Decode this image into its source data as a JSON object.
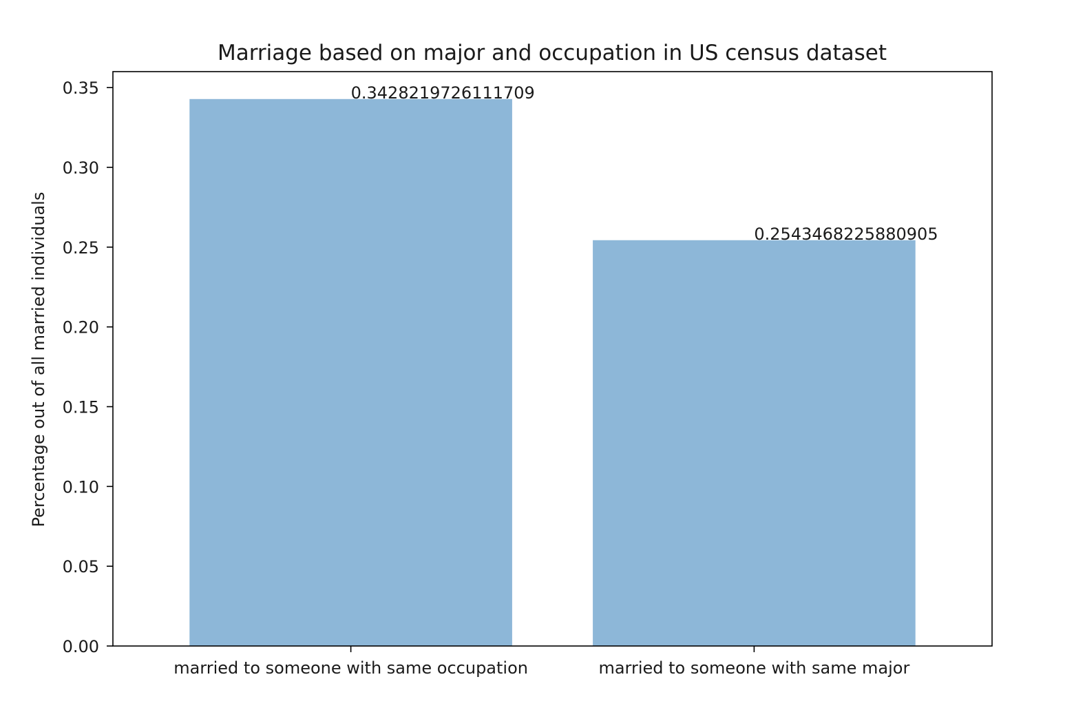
{
  "chart_data": {
    "type": "bar",
    "title": "Marriage based on major and occupation in US census dataset",
    "xlabel": "",
    "ylabel": "Percentage out of all married individuals",
    "categories": [
      "married to someone with same occupation",
      "married to someone with same major"
    ],
    "values": [
      0.3428219726111709,
      0.2543468225880905
    ],
    "data_labels": [
      "0.3428219726111709",
      "0.2543468225880905"
    ],
    "ylim": [
      0,
      0.36
    ],
    "yticks": [
      0.0,
      0.05,
      0.1,
      0.15,
      0.2,
      0.25,
      0.3,
      0.35
    ],
    "ytick_labels": [
      "0.00",
      "0.05",
      "0.10",
      "0.15",
      "0.20",
      "0.25",
      "0.30",
      "0.35"
    ],
    "bar_color": "#8db7d8",
    "grid": false,
    "legend": "none"
  }
}
